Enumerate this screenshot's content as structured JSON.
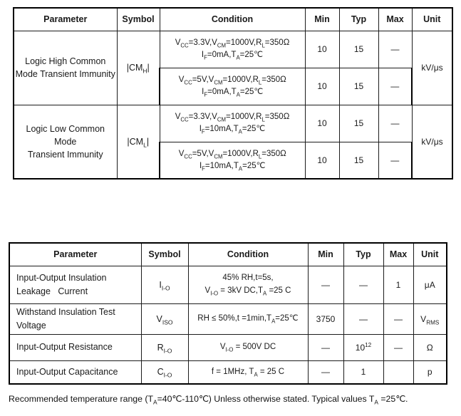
{
  "table1": {
    "headers": [
      "Parameter",
      "Symbol",
      "Condition",
      "Min",
      "Typ",
      "Max",
      "Unit"
    ],
    "groups": [
      {
        "parameter": "Logic High Common<br>Mode Transient Immunity",
        "symbol": "|CM<sub>H</sub>|",
        "unit": "kV/μs",
        "rows": [
          {
            "condition": "V<sub>CC</sub>=3.3V,V<sub>CM</sub>=1000V,R<sub>L</sub>=350Ω<br>I<sub>F</sub>=0mA,T<sub>A</sub>=25℃",
            "min": "10",
            "typ": "15",
            "max": "—"
          },
          {
            "condition": "V<sub>CC</sub>=5V,V<sub>CM</sub>=1000V,R<sub>L</sub>=350Ω<br>I<sub>F</sub>=0mA,T<sub>A</sub>=25℃",
            "min": "10",
            "typ": "15",
            "max": "—"
          }
        ]
      },
      {
        "parameter": "Logic Low Common Mode<br>Transient Immunity",
        "symbol": "|CM<sub>L</sub>|",
        "unit": "kV/μs",
        "rows": [
          {
            "condition": "V<sub>CC</sub>=3.3V,V<sub>CM</sub>=1000V,R<sub>L</sub>=350Ω<br>I<sub>F</sub>=10mA,T<sub>A</sub>=25℃",
            "min": "10",
            "typ": "15",
            "max": "—"
          },
          {
            "condition": "V<sub>CC</sub>=5V,V<sub>CM</sub>=1000V,R<sub>L</sub>=350Ω<br>I<sub>F</sub>=10mA,T<sub>A</sub>=25℃",
            "min": "10",
            "typ": "15",
            "max": "—"
          }
        ]
      }
    ]
  },
  "table2": {
    "headers": [
      "Parameter",
      "Symbol",
      "Condition",
      "Min",
      "Typ",
      "Max",
      "Unit"
    ],
    "rows": [
      {
        "parameter": "Input-Output Insulation<br>Leakage&nbsp;&nbsp;&nbsp;Current",
        "symbol": "I<sub>I-O</sub>",
        "condition": "45% RH,t=5s,<br>V<sub>I-O</sub> = 3kV DC,T<sub>A</sub> =25 C",
        "min": "—",
        "typ": "—",
        "max": "1",
        "unit": "μA"
      },
      {
        "parameter": "Withstand Insulation Test<br>Voltage",
        "symbol": "V<sub>ISO</sub>",
        "condition": "RH ≤ 50%,t =1min,T<sub>A</sub>=25℃",
        "min": "3750",
        "typ": "—",
        "max": "—",
        "unit": "V<sub>RMS</sub>"
      },
      {
        "parameter": "Input-Output Resistance",
        "symbol": "R<sub>I-O</sub>",
        "condition": "V<sub>I-O</sub> = 500V DC",
        "min": "—",
        "typ": "10<sup>12</sup>",
        "max": "—",
        "unit": "Ω"
      },
      {
        "parameter": "Input-Output Capacitance",
        "symbol": "C<sub>I-O</sub>",
        "condition": "f = 1MHz, T<sub>A</sub> = 25 C",
        "min": "—",
        "typ": "1",
        "max": "",
        "unit": "p"
      }
    ]
  },
  "note": "Recommended temperature range (T<sub>A</sub>=40℃-110℃) Unless otherwise stated. Typical values T<sub>A</sub> =25℃."
}
